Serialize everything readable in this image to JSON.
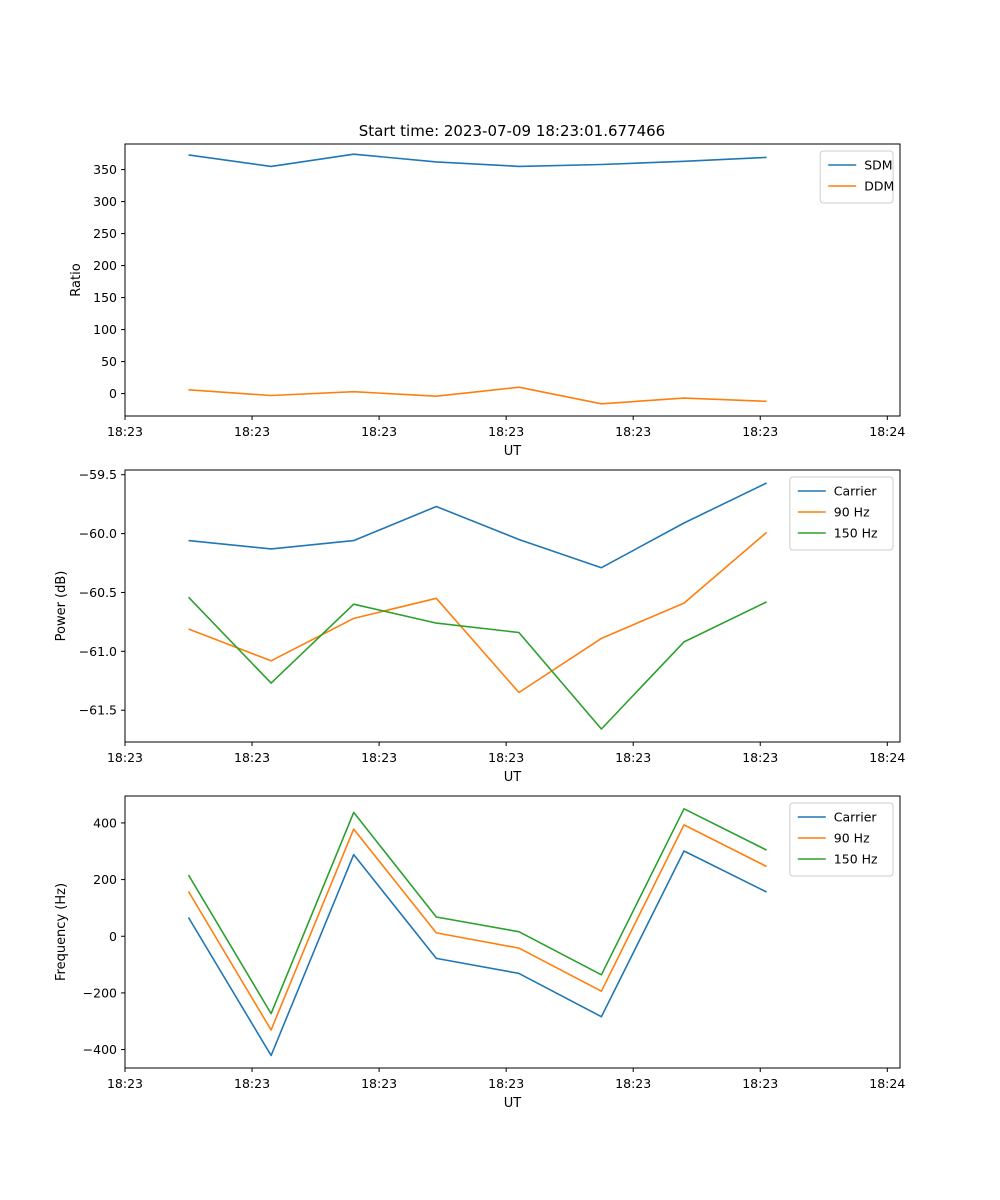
{
  "figure": {
    "title": "Start time: 2023-07-09 18:23:01.677466"
  },
  "colors": {
    "blue": "#1f77b4",
    "orange": "#ff7f0e",
    "green": "#2ca02c"
  },
  "chart_data": [
    {
      "type": "line",
      "title": "Start time: 2023-07-09 18:23:01.677466",
      "xlabel": "UT",
      "ylabel": "Ratio",
      "xlim": [
        0,
        6.1
      ],
      "ylim": [
        -35,
        390
      ],
      "x": [
        0.5,
        1.15,
        1.8,
        2.45,
        3.1,
        3.75,
        4.4,
        5.05
      ],
      "x_ticks": [
        0,
        1,
        2,
        3,
        4,
        5,
        6
      ],
      "x_tick_labels": [
        "18:23",
        "18:23",
        "18:23",
        "18:23",
        "18:23",
        "18:23",
        "18:24"
      ],
      "y_ticks": [
        0,
        50,
        100,
        150,
        200,
        250,
        300,
        350
      ],
      "y_tick_labels": [
        "0",
        "50",
        "100",
        "150",
        "200",
        "250",
        "300",
        "350"
      ],
      "legend_position": "top-right",
      "series": [
        {
          "name": "SDM",
          "color": "#1f77b4",
          "values": [
            373,
            355,
            374,
            362,
            355,
            358,
            363,
            369
          ]
        },
        {
          "name": "DDM",
          "color": "#ff7f0e",
          "values": [
            6,
            -3,
            3,
            -4,
            10,
            -16,
            -7,
            -12
          ]
        }
      ]
    },
    {
      "type": "line",
      "title": "",
      "xlabel": "UT",
      "ylabel": "Power (dB)",
      "xlim": [
        0,
        6.1
      ],
      "ylim": [
        -61.77,
        -59.46
      ],
      "x": [
        0.5,
        1.15,
        1.8,
        2.45,
        3.1,
        3.75,
        4.4,
        5.05
      ],
      "x_ticks": [
        0,
        1,
        2,
        3,
        4,
        5,
        6
      ],
      "x_tick_labels": [
        "18:23",
        "18:23",
        "18:23",
        "18:23",
        "18:23",
        "18:23",
        "18:24"
      ],
      "y_ticks": [
        -61.5,
        -61.0,
        -60.5,
        -60.0,
        -59.5
      ],
      "y_tick_labels": [
        "−61.5",
        "−61.0",
        "−60.5",
        "−60.0",
        "−59.5"
      ],
      "legend_position": "top-right",
      "series": [
        {
          "name": "Carrier",
          "color": "#1f77b4",
          "values": [
            -60.06,
            -60.13,
            -60.06,
            -59.77,
            -60.05,
            -60.29,
            -59.91,
            -59.57
          ]
        },
        {
          "name": "90 Hz",
          "color": "#ff7f0e",
          "values": [
            -60.81,
            -61.08,
            -60.72,
            -60.55,
            -61.35,
            -60.89,
            -60.59,
            -59.99
          ]
        },
        {
          "name": "150 Hz",
          "color": "#2ca02c",
          "values": [
            -60.54,
            -61.27,
            -60.6,
            -60.76,
            -60.84,
            -61.66,
            -60.92,
            -60.58
          ]
        }
      ]
    },
    {
      "type": "line",
      "title": "",
      "xlabel": "UT",
      "ylabel": "Frequency (Hz)",
      "xlim": [
        0,
        6.1
      ],
      "ylim": [
        -465,
        495
      ],
      "x": [
        0.5,
        1.15,
        1.8,
        2.45,
        3.1,
        3.75,
        4.4,
        5.05
      ],
      "x_ticks": [
        0,
        1,
        2,
        3,
        4,
        5,
        6
      ],
      "x_tick_labels": [
        "18:23",
        "18:23",
        "18:23",
        "18:23",
        "18:23",
        "18:23",
        "18:24"
      ],
      "y_ticks": [
        -400,
        -200,
        0,
        200,
        400
      ],
      "y_tick_labels": [
        "−400",
        "−200",
        "0",
        "200",
        "400"
      ],
      "legend_position": "top-right",
      "series": [
        {
          "name": "Carrier",
          "color": "#1f77b4",
          "values": [
            66,
            -421,
            288,
            -78,
            -131,
            -284,
            301,
            156
          ]
        },
        {
          "name": "90 Hz",
          "color": "#ff7f0e",
          "values": [
            158,
            -331,
            378,
            12,
            -42,
            -194,
            393,
            246
          ]
        },
        {
          "name": "150 Hz",
          "color": "#2ca02c",
          "values": [
            216,
            -273,
            437,
            68,
            16,
            -136,
            450,
            304
          ]
        }
      ]
    }
  ]
}
